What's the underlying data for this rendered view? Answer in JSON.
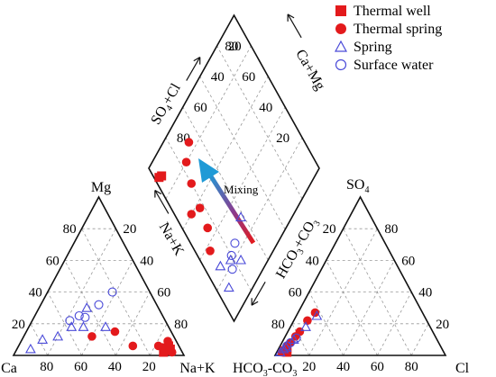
{
  "legend": [
    {
      "key": "thermal_well",
      "label": "Thermal well",
      "shape": "square",
      "color": "#e31a1c",
      "filled": true
    },
    {
      "key": "thermal_spring",
      "label": "Thermal spring",
      "shape": "circle",
      "color": "#e31a1c",
      "filled": true
    },
    {
      "key": "spring",
      "label": "Spring",
      "shape": "triangle",
      "color": "#4a4ad8",
      "filled": false
    },
    {
      "key": "surface_water",
      "label": "Surface water",
      "shape": "circle",
      "color": "#4a4ad8",
      "filled": false
    }
  ],
  "arrow_label": "Mixing",
  "chart_data": {
    "type": "piper",
    "cation_triangle": {
      "apex_top": "Mg",
      "left_corner": "Ca",
      "right_corner": "Na+K",
      "ticks": [
        20,
        40,
        60,
        80
      ]
    },
    "anion_triangle": {
      "apex_top": "SO4",
      "left_corner": "HCO3+CO3",
      "right_corner": "Cl",
      "ticks": [
        20,
        40,
        60,
        80
      ]
    },
    "diamond": {
      "left_upper_axis": "SO4+Cl",
      "right_upper_axis": "Ca+Mg",
      "left_lower_axis": "Na+K",
      "right_lower_axis": "HCO3+CO3",
      "ticks": [
        20,
        40,
        60,
        80
      ]
    },
    "series": [
      {
        "name": "Thermal well",
        "cation": [
          [
            89,
            3
          ],
          [
            88,
            6
          ],
          [
            87,
            2
          ],
          [
            90,
            4
          ]
        ],
        "anion": [
          [
            5,
            4
          ],
          [
            6,
            2
          ],
          [
            4,
            3
          ]
        ],
        "diamond": [
          [
            91,
            3
          ],
          [
            90,
            5
          ]
        ]
      },
      {
        "name": "Thermal spring",
        "cation": [
          [
            40,
            12
          ],
          [
            52,
            15
          ],
          [
            67,
            6
          ],
          [
            85,
            5
          ],
          [
            90,
            3
          ],
          [
            92,
            2
          ],
          [
            89,
            5
          ],
          [
            86,
            9
          ],
          [
            82,
            6
          ]
        ],
        "anion": [
          [
            6,
            12
          ],
          [
            8,
            22
          ],
          [
            10,
            27
          ],
          [
            5,
            8
          ],
          [
            7,
            15
          ],
          [
            4,
            6
          ],
          [
            3,
            2
          ]
        ],
        "diamond": [
          [
            37,
            9
          ],
          [
            46,
            15
          ],
          [
            57,
            17
          ],
          [
            70,
            20
          ],
          [
            80,
            24
          ],
          [
            85,
            32
          ],
          [
            60,
            10
          ]
        ]
      },
      {
        "name": "Spring",
        "cation": [
          [
            8,
            4
          ],
          [
            12,
            10
          ],
          [
            20,
            12
          ],
          [
            25,
            18
          ],
          [
            28,
            30
          ],
          [
            32,
            18
          ],
          [
            45,
            18
          ]
        ],
        "anion": [
          [
            2,
            2
          ],
          [
            4,
            5
          ],
          [
            6,
            10
          ],
          [
            9,
            18
          ],
          [
            12,
            25
          ],
          [
            3,
            4
          ]
        ],
        "diamond": [
          [
            14,
            8
          ],
          [
            22,
            18
          ],
          [
            30,
            38
          ],
          [
            16,
            24
          ],
          [
            26,
            10
          ]
        ]
      },
      {
        "name": "Surface water",
        "cation": [
          [
            22,
            22
          ],
          [
            26,
            25
          ],
          [
            34,
            32
          ],
          [
            38,
            40
          ],
          [
            30,
            24
          ]
        ],
        "anion": [
          [
            5,
            8
          ],
          [
            7,
            11
          ],
          [
            4,
            6
          ]
        ],
        "diamond": [
          [
            18,
            16
          ],
          [
            23,
            20
          ],
          [
            25,
            26
          ]
        ]
      }
    ]
  }
}
